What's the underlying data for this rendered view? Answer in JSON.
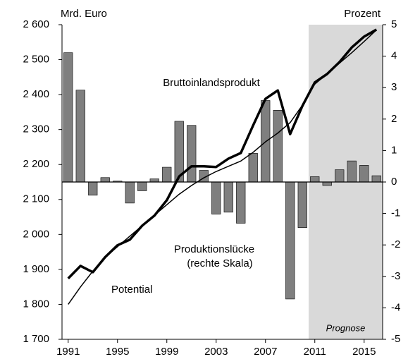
{
  "chart_data": {
    "type": "combo",
    "y_label": "Mrd. Euro",
    "y2_label": "Prozent",
    "x": [
      1991,
      1992,
      1993,
      1994,
      1995,
      1996,
      1997,
      1998,
      1999,
      2000,
      2001,
      2002,
      2003,
      2004,
      2005,
      2006,
      2007,
      2008,
      2009,
      2010,
      2011,
      2012,
      2013,
      2014,
      2015,
      2016
    ],
    "xlim": [
      1990.5,
      2016.5
    ],
    "xticks": [
      1991,
      1995,
      1999,
      2003,
      2007,
      2011,
      2015
    ],
    "ylim": [
      1700,
      2600
    ],
    "yticks": [
      {
        "value": 1700,
        "label": "1 700"
      },
      {
        "value": 1800,
        "label": "1 800"
      },
      {
        "value": 1900,
        "label": "1 900"
      },
      {
        "value": 2000,
        "label": "2 000"
      },
      {
        "value": 2100,
        "label": "2 100"
      },
      {
        "value": 2200,
        "label": "2 200"
      },
      {
        "value": 2300,
        "label": "2 300"
      },
      {
        "value": 2400,
        "label": "2 400"
      },
      {
        "value": 2500,
        "label": "2 500"
      },
      {
        "value": 2600,
        "label": "2 600"
      }
    ],
    "y2lim": [
      -5,
      5
    ],
    "y2ticks": [
      -5,
      -4,
      -3,
      -2,
      -1,
      0,
      1,
      2,
      3,
      4,
      5
    ],
    "shaded_region": {
      "label": "Prognose",
      "xlim": [
        2010.5,
        2016.5
      ],
      "color": "#d9d9d9"
    },
    "series": [
      {
        "name": "Produktionslücke",
        "name_note": "(rechte Skala)",
        "type": "bar",
        "axis": "y2",
        "color": "#7f7f7f",
        "values": [
          4.11,
          2.92,
          -0.42,
          0.14,
          0.03,
          -0.67,
          -0.28,
          0.1,
          0.47,
          1.93,
          1.8,
          0.37,
          -1.02,
          -0.96,
          -1.31,
          0.91,
          2.59,
          2.28,
          -3.72,
          -1.45,
          0.17,
          -0.11,
          0.39,
          0.67,
          0.53,
          0.2
        ]
      },
      {
        "name": "Bruttoinlandsprodukt",
        "type": "line",
        "color": "#000000",
        "width": 3.5,
        "values": [
          1874,
          1910,
          1892,
          1935,
          1969,
          1985,
          2025,
          2054,
          2098,
          2166,
          2195,
          2195,
          2193,
          2217,
          2233,
          2312,
          2388,
          2412,
          2287,
          2368,
          2435,
          2459,
          2493,
          2535,
          2566,
          2586
        ]
      },
      {
        "name": "Potential",
        "type": "line",
        "color": "#000000",
        "width": 1.5,
        "values": [
          1800,
          1850,
          1895,
          1935,
          1965,
          1995,
          2025,
          2055,
          2085,
          2115,
          2140,
          2162,
          2180,
          2195,
          2210,
          2235,
          2265,
          2290,
          2320,
          2370,
          2430,
          2460,
          2490,
          2520,
          2552,
          2585
        ]
      }
    ]
  }
}
